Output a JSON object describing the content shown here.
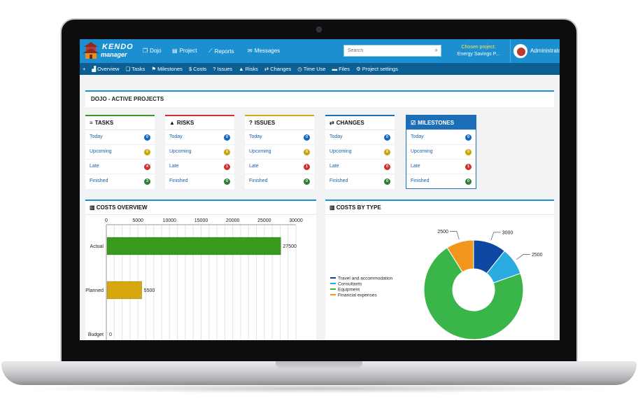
{
  "colors": {
    "topbar": "#1c8fd0",
    "subnav": "#0c5e93",
    "bar_actual": "#3a9a1e",
    "bar_planned": "#d4a80e",
    "badge_blue": "#1565c0",
    "badge_yellow": "#c9a400",
    "badge_red": "#d32f2f",
    "badge_green": "#2e7d32"
  },
  "logo": {
    "line1": "KENDO",
    "line2": "manager"
  },
  "topnav": [
    {
      "icon": "copy-icon",
      "glyph": "❐",
      "label": "Dojo"
    },
    {
      "icon": "file-icon",
      "glyph": "▤",
      "label": "Project"
    },
    {
      "icon": "line-chart-icon",
      "glyph": "⟋",
      "label": "Reports"
    },
    {
      "icon": "envelope-icon",
      "glyph": "✉",
      "label": "Messages"
    }
  ],
  "search": {
    "placeholder": "Search",
    "icon_glyph": "⌕"
  },
  "chosen_project": {
    "label": "Chosen project:",
    "value": "Energy Savings P..."
  },
  "user": {
    "name": "Administrator"
  },
  "subnav": [
    {
      "icon": "plus-icon",
      "glyph": "+",
      "label": ""
    },
    {
      "icon": "area-chart-icon",
      "glyph": "▟",
      "label": "Overview"
    },
    {
      "icon": "tasks-icon",
      "glyph": "❏",
      "label": "Tasks"
    },
    {
      "icon": "flag-icon",
      "glyph": "⚑",
      "label": "Milestones"
    },
    {
      "icon": "dollar-icon",
      "glyph": "$",
      "label": "Costs"
    },
    {
      "icon": "question-icon",
      "glyph": "?",
      "label": "Issues"
    },
    {
      "icon": "warning-icon",
      "glyph": "▲",
      "label": "Risks"
    },
    {
      "icon": "exchange-icon",
      "glyph": "⇄",
      "label": "Changes"
    },
    {
      "icon": "clock-icon",
      "glyph": "◷",
      "label": "Time Use"
    },
    {
      "icon": "folder-icon",
      "glyph": "▬",
      "label": "Files"
    },
    {
      "icon": "cogs-icon",
      "glyph": "⚙",
      "label": "Project settings"
    }
  ],
  "page_title": "DOJO - ACTIVE PROJECTS",
  "cards": [
    {
      "key": "tasks",
      "title": "TASKS",
      "icon": "list-icon",
      "glyph": "≡",
      "accent": "#3a9a1e",
      "rows": [
        {
          "label": "Today",
          "count": "0",
          "color": "blue"
        },
        {
          "label": "Upcoming",
          "count": "0",
          "color": "yellow"
        },
        {
          "label": "Late",
          "count": "4",
          "color": "red"
        },
        {
          "label": "Finished",
          "count": "3",
          "color": "green"
        }
      ]
    },
    {
      "key": "risks",
      "title": "RISKS",
      "icon": "warning-icon",
      "glyph": "▲",
      "accent": "#d32f2f",
      "rows": [
        {
          "label": "Today",
          "count": "0",
          "color": "blue"
        },
        {
          "label": "Upcoming",
          "count": "0",
          "color": "yellow"
        },
        {
          "label": "Late",
          "count": "1",
          "color": "red"
        },
        {
          "label": "Finished",
          "count": "0",
          "color": "green"
        }
      ]
    },
    {
      "key": "issues",
      "title": "ISSUES",
      "icon": "question-icon",
      "glyph": "?",
      "accent": "#d4a80e",
      "rows": [
        {
          "label": "Today",
          "count": "0",
          "color": "blue"
        },
        {
          "label": "Upcoming",
          "count": "0",
          "color": "yellow"
        },
        {
          "label": "Late",
          "count": "1",
          "color": "red"
        },
        {
          "label": "Finished",
          "count": "0",
          "color": "green"
        }
      ]
    },
    {
      "key": "changes",
      "title": "CHANGES",
      "icon": "exchange-icon",
      "glyph": "⇄",
      "accent": "#1c6fb7",
      "rows": [
        {
          "label": "Today",
          "count": "0",
          "color": "blue"
        },
        {
          "label": "Upcoming",
          "count": "0",
          "color": "yellow"
        },
        {
          "label": "Late",
          "count": "0",
          "color": "red"
        },
        {
          "label": "Finished",
          "count": "0",
          "color": "green"
        }
      ]
    },
    {
      "key": "milestones",
      "title": "MILESTONES",
      "icon": "check-square-icon",
      "glyph": "☑",
      "accent": "#1c6fb7",
      "rows": [
        {
          "label": "Today",
          "count": "0",
          "color": "blue"
        },
        {
          "label": "Upcoming",
          "count": "0",
          "color": "yellow"
        },
        {
          "label": "Late",
          "count": "1",
          "color": "red"
        },
        {
          "label": "Finished",
          "count": "0",
          "color": "green"
        }
      ]
    }
  ],
  "costs_overview": {
    "title": "COSTS OVERVIEW",
    "icon": "bar-chart-icon"
  },
  "costs_by_type": {
    "title": "COSTS BY TYPE",
    "icon": "bar-chart-icon"
  },
  "chart_data": [
    {
      "type": "bar",
      "orientation": "horizontal",
      "categories": [
        "Actual",
        "Planned",
        "Budget"
      ],
      "values": [
        27500,
        5500,
        0
      ],
      "value_labels": [
        "27500",
        "5500",
        "0"
      ],
      "colors": [
        "#3a9a1e",
        "#d4a80e",
        "#1565c0"
      ],
      "xticks": [
        "0",
        "5000",
        "10000",
        "15000",
        "20000",
        "25000",
        "30000"
      ],
      "xlim": [
        0,
        30000
      ],
      "grid": true
    },
    {
      "type": "pie",
      "donut": true,
      "series": [
        {
          "name": "Travel and accommodation",
          "value": 3000,
          "label": "3000",
          "color": "#0d47a1"
        },
        {
          "name": "Consultants",
          "value": 2500,
          "label": "2500",
          "color": "#29abe2"
        },
        {
          "name": "Equipment",
          "value": 20000,
          "label": "",
          "color": "#3ab54a"
        },
        {
          "name": "Financial expenses",
          "value": 2500,
          "label": "2500",
          "color": "#f2961d"
        }
      ],
      "legend_position": "left"
    }
  ]
}
